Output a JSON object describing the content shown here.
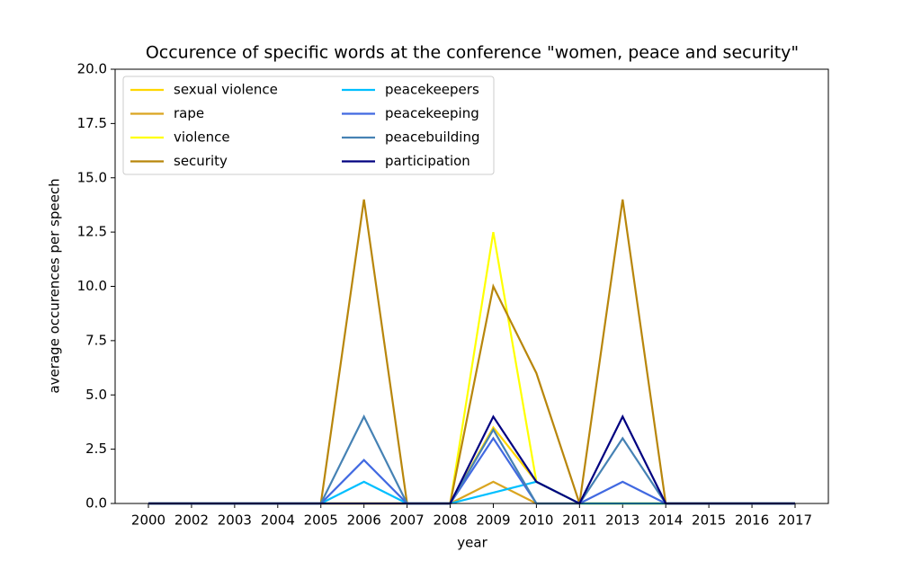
{
  "chart_data": {
    "type": "line",
    "title": "Occurence of specific words at the conference \"women, peace and security\"",
    "x_label": "year",
    "y_label": "average occurences per speech",
    "categories": [
      "2000",
      "2002",
      "2003",
      "2004",
      "2005",
      "2006",
      "2007",
      "2008",
      "2009",
      "2010",
      "2011",
      "2013",
      "2014",
      "2015",
      "2016",
      "2017"
    ],
    "series": [
      {
        "name": "sexual violence",
        "color": "#ffd700",
        "values": [
          0,
          0,
          0,
          0,
          0,
          0,
          0,
          0,
          3.5,
          1,
          0,
          0,
          0,
          0,
          0,
          0
        ]
      },
      {
        "name": "rape",
        "color": "#daa520",
        "values": [
          0,
          0,
          0,
          0,
          0,
          0,
          0,
          0,
          1,
          0,
          0,
          0,
          0,
          0,
          0,
          0
        ]
      },
      {
        "name": "violence",
        "color": "#ffff00",
        "values": [
          0,
          0,
          0,
          0,
          0,
          0,
          0,
          0,
          12.5,
          1,
          0,
          0,
          0,
          0,
          0,
          0
        ]
      },
      {
        "name": "security",
        "color": "#b8860b",
        "values": [
          0,
          0,
          0,
          0,
          0,
          14,
          0,
          0,
          10,
          6,
          0,
          14,
          0,
          0,
          0,
          0
        ]
      },
      {
        "name": "peacekeepers",
        "color": "#00bfff",
        "values": [
          0,
          0,
          0,
          0,
          0,
          1,
          0,
          0,
          0.5,
          1,
          0,
          0,
          0,
          0,
          0,
          0
        ]
      },
      {
        "name": "peacekeeping",
        "color": "#4169e1",
        "values": [
          0,
          0,
          0,
          0,
          0,
          2,
          0,
          0,
          3,
          0,
          0,
          1,
          0,
          0,
          0,
          0
        ]
      },
      {
        "name": "peacebuilding",
        "color": "#4682b4",
        "values": [
          0,
          0,
          0,
          0,
          0,
          4,
          0,
          0,
          3.4,
          0,
          0,
          3,
          0,
          0,
          0,
          0
        ]
      },
      {
        "name": "participation",
        "color": "#000080",
        "values": [
          0,
          0,
          0,
          0,
          0,
          0,
          0,
          0,
          4,
          1,
          0,
          4,
          0,
          0,
          0,
          0
        ]
      }
    ],
    "ylim": [
      0,
      20
    ],
    "yticks": [
      {
        "value": 0,
        "label": "0.0"
      },
      {
        "value": 2.5,
        "label": "2.5"
      },
      {
        "value": 5,
        "label": "5.0"
      },
      {
        "value": 7.5,
        "label": "7.5"
      },
      {
        "value": 10,
        "label": "10.0"
      },
      {
        "value": 12.5,
        "label": "12.5"
      },
      {
        "value": 15,
        "label": "15.0"
      },
      {
        "value": 17.5,
        "label": "17.5"
      },
      {
        "value": 20,
        "label": "20.0"
      }
    ],
    "legend": "upper left",
    "grid": false
  }
}
